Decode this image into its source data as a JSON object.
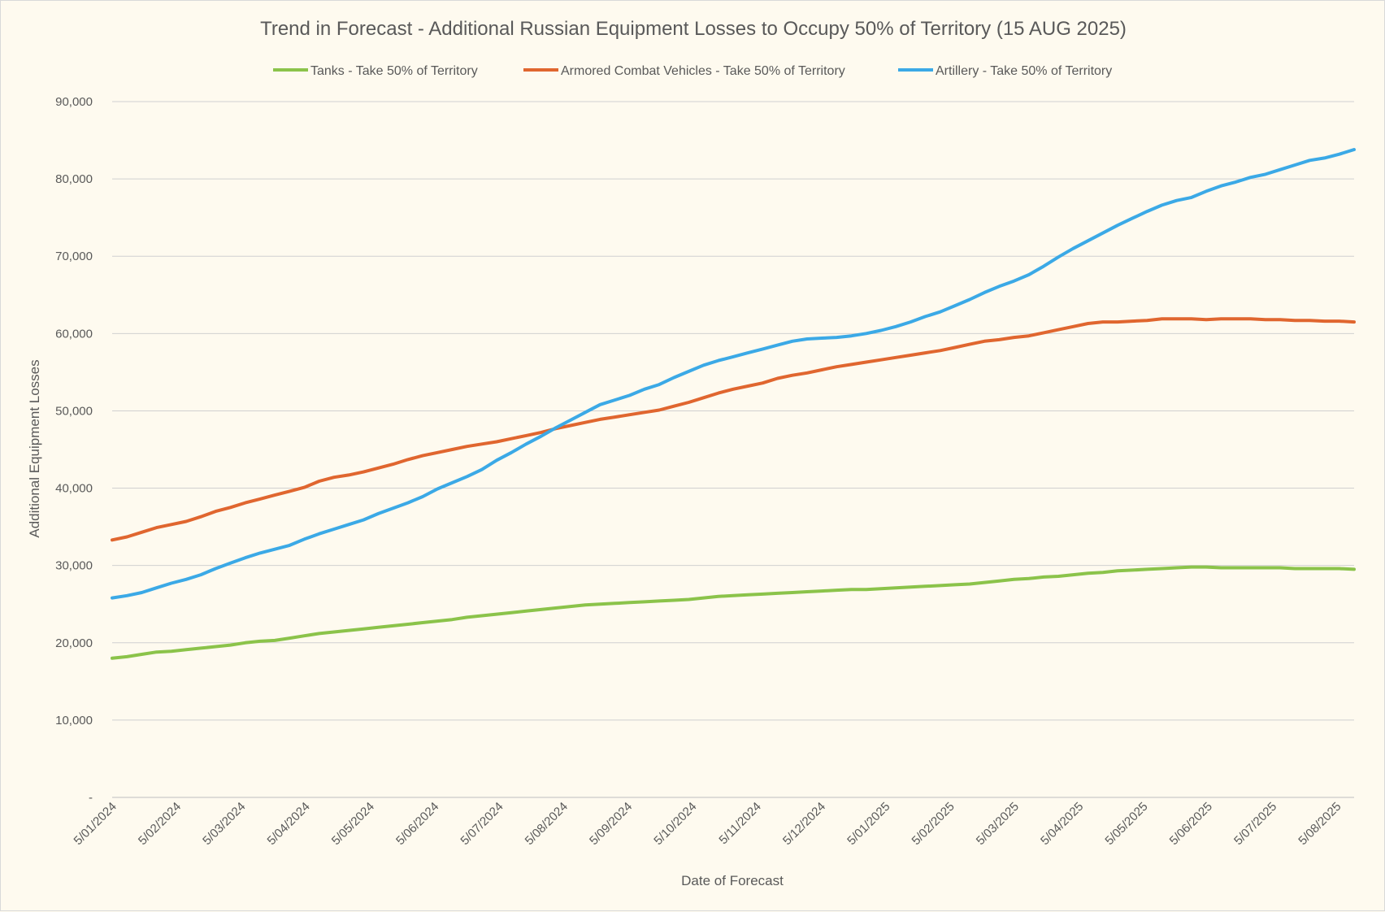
{
  "chart_data": {
    "type": "line",
    "title": "Trend in Forecast - Additional Russian Equipment Losses to Occupy 50% of Territory (15 AUG 2025)",
    "xlabel": "Date of Forecast",
    "ylabel": "Additional Equipment Losses",
    "ylim": [
      0,
      90000
    ],
    "ytick_values": [
      0,
      10000,
      20000,
      30000,
      40000,
      50000,
      60000,
      70000,
      80000,
      90000
    ],
    "ytick_labels": [
      "-",
      "10,000",
      "20,000",
      "30,000",
      "40,000",
      "50,000",
      "60,000",
      "70,000",
      "80,000",
      "90,000"
    ],
    "x_tick_labels": [
      "5/01/2024",
      "5/02/2024",
      "5/03/2024",
      "5/04/2024",
      "5/05/2024",
      "5/06/2024",
      "5/07/2024",
      "5/08/2024",
      "5/09/2024",
      "5/10/2024",
      "5/11/2024",
      "5/12/2024",
      "5/01/2025",
      "5/02/2025",
      "5/03/2025",
      "5/04/2025",
      "5/05/2025",
      "5/06/2025",
      "5/07/2025",
      "5/08/2025"
    ],
    "x": [
      "2024-01-05",
      "2024-01-12",
      "2024-01-19",
      "2024-01-26",
      "2024-02-02",
      "2024-02-09",
      "2024-02-16",
      "2024-02-23",
      "2024-03-01",
      "2024-03-08",
      "2024-03-15",
      "2024-03-22",
      "2024-03-29",
      "2024-04-05",
      "2024-04-12",
      "2024-04-19",
      "2024-04-26",
      "2024-05-03",
      "2024-05-10",
      "2024-05-17",
      "2024-05-24",
      "2024-05-31",
      "2024-06-07",
      "2024-06-14",
      "2024-06-21",
      "2024-06-28",
      "2024-07-05",
      "2024-07-12",
      "2024-07-19",
      "2024-07-26",
      "2024-08-02",
      "2024-08-09",
      "2024-08-16",
      "2024-08-23",
      "2024-08-30",
      "2024-09-06",
      "2024-09-13",
      "2024-09-20",
      "2024-09-27",
      "2024-10-04",
      "2024-10-11",
      "2024-10-18",
      "2024-10-25",
      "2024-11-01",
      "2024-11-08",
      "2024-11-15",
      "2024-11-22",
      "2024-11-29",
      "2024-12-06",
      "2024-12-13",
      "2024-12-20",
      "2024-12-27",
      "2025-01-03",
      "2025-01-10",
      "2025-01-17",
      "2025-01-24",
      "2025-01-31",
      "2025-02-07",
      "2025-02-14",
      "2025-02-21",
      "2025-02-28",
      "2025-03-07",
      "2025-03-14",
      "2025-03-21",
      "2025-03-28",
      "2025-04-04",
      "2025-04-11",
      "2025-04-18",
      "2025-04-25",
      "2025-05-02",
      "2025-05-09",
      "2025-05-16",
      "2025-05-23",
      "2025-05-30",
      "2025-06-06",
      "2025-06-13",
      "2025-06-20",
      "2025-06-27",
      "2025-07-04",
      "2025-07-11",
      "2025-07-18",
      "2025-07-25",
      "2025-08-01",
      "2025-08-08",
      "2025-08-15"
    ],
    "series": [
      {
        "name": "Tanks - Take 50% of Territory",
        "color": "#8bc34a",
        "values": [
          18000,
          18200,
          18500,
          18800,
          18900,
          19100,
          19300,
          19500,
          19700,
          20000,
          20200,
          20300,
          20600,
          20900,
          21200,
          21400,
          21600,
          21800,
          22000,
          22200,
          22400,
          22600,
          22800,
          23000,
          23300,
          23500,
          23700,
          23900,
          24100,
          24300,
          24500,
          24700,
          24900,
          25000,
          25100,
          25200,
          25300,
          25400,
          25500,
          25600,
          25800,
          26000,
          26100,
          26200,
          26300,
          26400,
          26500,
          26600,
          26700,
          26800,
          26900,
          26900,
          27000,
          27100,
          27200,
          27300,
          27400,
          27500,
          27600,
          27800,
          28000,
          28200,
          28300,
          28500,
          28600,
          28800,
          29000,
          29100,
          29300,
          29400,
          29500,
          29600,
          29700,
          29800,
          29800,
          29700,
          29700,
          29700,
          29700,
          29700,
          29600,
          29600,
          29600,
          29600,
          29500
        ]
      },
      {
        "name": "Armored Combat Vehicles - Take 50% of Territory",
        "color": "#e0662f",
        "values": [
          33300,
          33700,
          34300,
          34900,
          35300,
          35700,
          36300,
          37000,
          37500,
          38100,
          38600,
          39100,
          39600,
          40100,
          40900,
          41400,
          41700,
          42100,
          42600,
          43100,
          43700,
          44200,
          44600,
          45000,
          45400,
          45700,
          46000,
          46400,
          46800,
          47200,
          47700,
          48100,
          48500,
          48900,
          49200,
          49500,
          49800,
          50100,
          50600,
          51100,
          51700,
          52300,
          52800,
          53200,
          53600,
          54200,
          54600,
          54900,
          55300,
          55700,
          56000,
          56300,
          56600,
          56900,
          57200,
          57500,
          57800,
          58200,
          58600,
          59000,
          59200,
          59500,
          59700,
          60100,
          60500,
          60900,
          61300,
          61500,
          61500,
          61600,
          61700,
          61900,
          61900,
          61900,
          61800,
          61900,
          61900,
          61900,
          61800,
          61800,
          61700,
          61700,
          61600,
          61600,
          61500
        ]
      },
      {
        "name": "Artillery - Take 50% of Territory",
        "color": "#3ba9e6",
        "values": [
          25800,
          26100,
          26500,
          27100,
          27700,
          28200,
          28800,
          29600,
          30300,
          31000,
          31600,
          32100,
          32600,
          33400,
          34100,
          34700,
          35300,
          35900,
          36700,
          37400,
          38100,
          38900,
          39900,
          40700,
          41500,
          42400,
          43600,
          44600,
          45700,
          46700,
          47800,
          48800,
          49800,
          50800,
          51400,
          52000,
          52800,
          53400,
          54300,
          55100,
          55900,
          56500,
          57000,
          57500,
          58000,
          58500,
          59000,
          59300,
          59400,
          59500,
          59700,
          60000,
          60400,
          60900,
          61500,
          62200,
          62800,
          63600,
          64400,
          65300,
          66100,
          66800,
          67600,
          68700,
          69900,
          71000,
          72000,
          73000,
          74000,
          74900,
          75800,
          76600,
          77200,
          77600,
          78400,
          79100,
          79600,
          80200,
          80600,
          81200,
          81800,
          82400,
          82700,
          83200,
          83800
        ]
      }
    ]
  }
}
